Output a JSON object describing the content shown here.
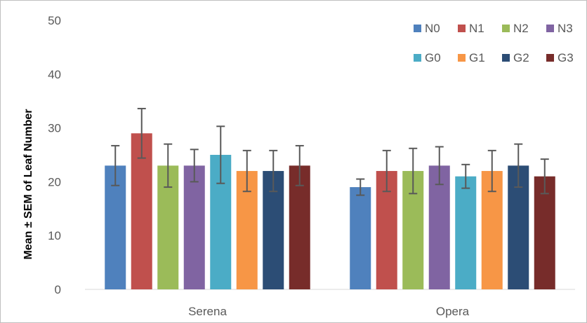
{
  "chart_data": {
    "type": "bar",
    "title": "",
    "xlabel": "",
    "ylabel": "Mean ± SEM of Leaf Number",
    "ylim": [
      0,
      50
    ],
    "yticks": [
      0,
      10,
      20,
      30,
      40,
      50
    ],
    "grid": false,
    "legend": "top-right",
    "categories": [
      "Serena",
      "Opera"
    ],
    "series": [
      {
        "name": "N0",
        "color": "#4f81bd",
        "values": [
          23,
          19
        ],
        "error": [
          3.7,
          1.5
        ]
      },
      {
        "name": "N1",
        "color": "#c0504d",
        "values": [
          29,
          22
        ],
        "error": [
          4.6,
          3.8
        ]
      },
      {
        "name": "N2",
        "color": "#9bbb59",
        "values": [
          23,
          22
        ],
        "error": [
          4.0,
          4.2
        ]
      },
      {
        "name": "N3",
        "color": "#8064a2",
        "values": [
          23,
          23
        ],
        "error": [
          3.0,
          3.5
        ]
      },
      {
        "name": "G0",
        "color": "#4bacc6",
        "values": [
          25,
          21
        ],
        "error": [
          5.3,
          2.2
        ]
      },
      {
        "name": "G1",
        "color": "#f79646",
        "values": [
          22,
          22
        ],
        "error": [
          3.8,
          3.8
        ]
      },
      {
        "name": "G2",
        "color": "#2c4d75",
        "values": [
          22,
          23
        ],
        "error": [
          3.8,
          4.0
        ]
      },
      {
        "name": "G3",
        "color": "#772c2a",
        "values": [
          23,
          21
        ],
        "error": [
          3.7,
          3.2
        ]
      }
    ]
  }
}
